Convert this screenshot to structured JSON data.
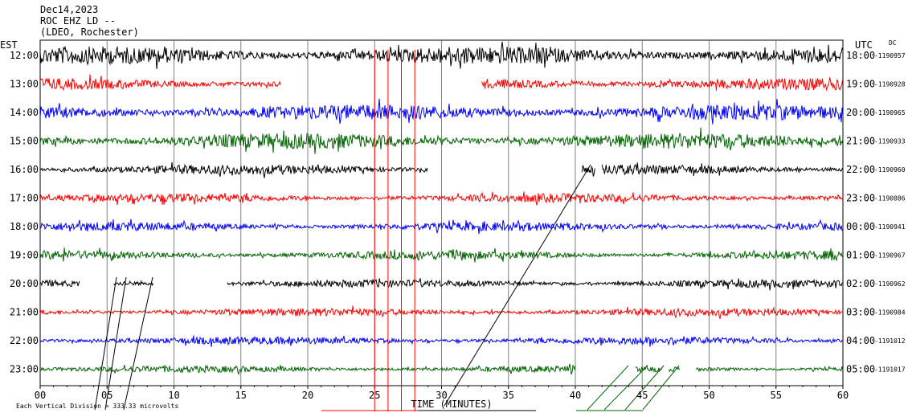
{
  "header": {
    "date": "Dec14,2023",
    "station": "ROC EHZ LD --",
    "network": "(LDEO, Rochester)",
    "left_tz": "EST",
    "right_tz": "UTC",
    "dc_label": "DC"
  },
  "footer": {
    "scale_note": "Each Vertical Division = 333.33 microvolts",
    "xlabel": "TIME (MINUTES)"
  },
  "colors": {
    "trace_cycle": [
      "#000000",
      "#ff0000",
      "#0000ff",
      "#006400"
    ],
    "grid": "#808080"
  },
  "chart_data": {
    "type": "line",
    "title": "ROC EHZ LD --",
    "xlabel": "TIME (MINUTES)",
    "xlim": [
      0,
      60
    ],
    "x_ticks": [
      "00",
      "05",
      "10",
      "15",
      "20",
      "25",
      "30",
      "35",
      "40",
      "45",
      "50",
      "55",
      "60"
    ],
    "rows": [
      {
        "est": "12:00",
        "utc": "18:00",
        "dc": "-1190957",
        "color": "#000000",
        "amp": 0.8,
        "segments": [
          [
            0,
            60
          ]
        ]
      },
      {
        "est": "13:00",
        "utc": "19:00",
        "dc": "-1190928",
        "color": "#ff0000",
        "amp": 0.55,
        "segments": [
          [
            0,
            18
          ],
          [
            33,
            60
          ]
        ]
      },
      {
        "est": "14:00",
        "utc": "20:00",
        "dc": "-1190965",
        "color": "#0000ff",
        "amp": 0.7,
        "segments": [
          [
            0,
            60
          ]
        ]
      },
      {
        "est": "15:00",
        "utc": "21:00",
        "dc": "-1190933",
        "color": "#006400",
        "amp": 0.7,
        "segments": [
          [
            0,
            60
          ]
        ]
      },
      {
        "est": "16:00",
        "utc": "22:00",
        "dc": "-1190960",
        "color": "#000000",
        "amp": 0.45,
        "segments": [
          [
            0,
            29
          ],
          [
            40.5,
            41.5
          ],
          [
            42,
            60
          ]
        ]
      },
      {
        "est": "17:00",
        "utc": "23:00",
        "dc": "-1190886",
        "color": "#ff0000",
        "amp": 0.4,
        "segments": [
          [
            0,
            60
          ]
        ]
      },
      {
        "est": "18:00",
        "utc": "00:00",
        "dc": "-1190941",
        "color": "#0000ff",
        "amp": 0.4,
        "segments": [
          [
            0,
            60
          ]
        ]
      },
      {
        "est": "19:00",
        "utc": "01:00",
        "dc": "-1190967",
        "color": "#006400",
        "amp": 0.4,
        "segments": [
          [
            0,
            60
          ]
        ]
      },
      {
        "est": "20:00",
        "utc": "02:00",
        "dc": "-1190962",
        "color": "#000000",
        "amp": 0.35,
        "segments": [
          [
            0,
            3
          ],
          [
            5.5,
            8.5
          ],
          [
            14,
            60
          ]
        ]
      },
      {
        "est": "21:00",
        "utc": "03:00",
        "dc": "-1190984",
        "color": "#ff0000",
        "amp": 0.35,
        "segments": [
          [
            0,
            60
          ]
        ]
      },
      {
        "est": "22:00",
        "utc": "04:00",
        "dc": "-1191012",
        "color": "#0000ff",
        "amp": 0.35,
        "segments": [
          [
            0,
            60
          ]
        ]
      },
      {
        "est": "23:00",
        "utc": "05:00",
        "dc": "-1191017",
        "color": "#006400",
        "amp": 0.3,
        "segments": [
          [
            0,
            40
          ],
          [
            44.5,
            46.5
          ],
          [
            47,
            47.8
          ],
          [
            49,
            60
          ]
        ]
      }
    ]
  }
}
